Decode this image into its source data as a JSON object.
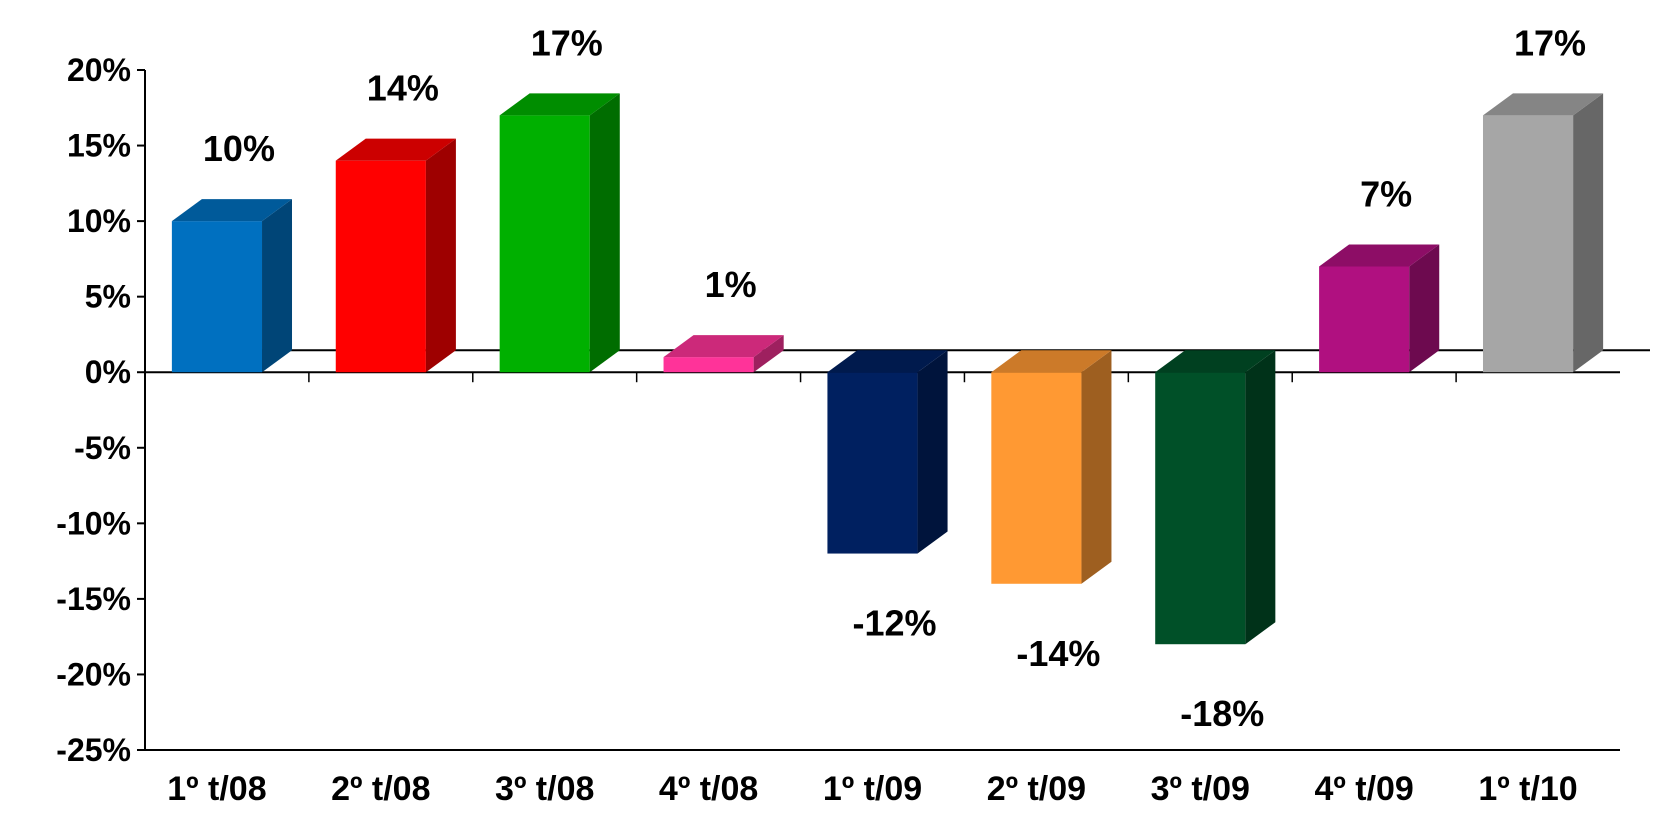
{
  "chart_data": {
    "type": "bar",
    "style": "3d-column",
    "categories": [
      "1º t/08",
      "2º t/08",
      "3º t/08",
      "4º t/08",
      "1º t/09",
      "2º t/09",
      "3º t/09",
      "4º t/09",
      "1º t/10"
    ],
    "values": [
      10,
      14,
      17,
      1,
      -12,
      -14,
      -18,
      7,
      17
    ],
    "value_labels": [
      "10%",
      "14%",
      "17%",
      "1%",
      "-12%",
      "-14%",
      "-18%",
      "7%",
      "17%"
    ],
    "colors": [
      "#0070C0",
      "#FF0000",
      "#00B000",
      "#FF3399",
      "#002060",
      "#FF9933",
      "#005028",
      "#B01080",
      "#A6A6A6"
    ],
    "y_ticks": [
      20,
      15,
      10,
      5,
      0,
      -5,
      -10,
      -15,
      -20,
      -25
    ],
    "y_tick_labels": [
      "20%",
      "15%",
      "10%",
      "5%",
      "0%",
      "-5%",
      "-10%",
      "-15%",
      "-20%",
      "-25%"
    ],
    "ylim": [
      -25,
      20
    ],
    "grid": false,
    "legend": "none"
  }
}
